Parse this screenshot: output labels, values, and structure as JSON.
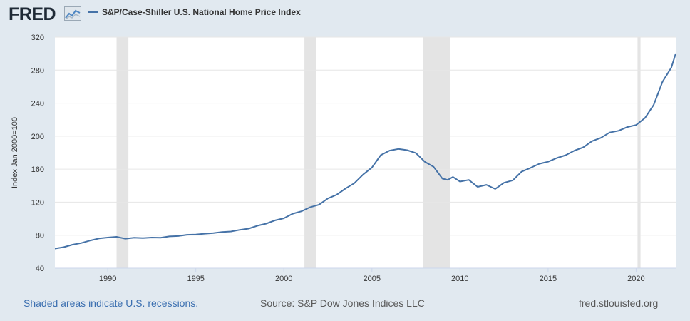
{
  "header": {
    "logo_text": "FRED",
    "legend_label": "S&P/Case-Shiller U.S. National Home Price Index"
  },
  "footer": {
    "note": "Shaded areas indicate U.S. recessions.",
    "source": "Source: S&P Dow Jones Indices LLC",
    "site": "fred.stlouisfed.org"
  },
  "colors": {
    "background": "#e1e9f0",
    "plot_background": "#ffffff",
    "series": "#4572a7",
    "recession": "#e4e4e4",
    "grid": "#e6e6e6",
    "logo": "#1f2a36"
  },
  "chart_data": {
    "type": "line",
    "title": "S&P/Case-Shiller U.S. National Home Price Index",
    "xlabel": "",
    "ylabel": "Index Jan 2000=100",
    "xlim": [
      1987.0,
      2022.25
    ],
    "ylim": [
      40,
      320
    ],
    "x_ticks": [
      1990,
      1995,
      2000,
      2005,
      2010,
      2015,
      2020
    ],
    "y_ticks": [
      40,
      80,
      120,
      160,
      200,
      240,
      280,
      320
    ],
    "grid": true,
    "recessions": [
      [
        1990.5,
        1991.17
      ],
      [
        2001.17,
        2001.83
      ],
      [
        2007.92,
        2009.42
      ],
      [
        2020.08,
        2020.25
      ]
    ],
    "series": [
      {
        "name": "S&P/Case-Shiller U.S. National Home Price Index",
        "x": [
          1987.0,
          1987.5,
          1988.0,
          1988.5,
          1989.0,
          1989.5,
          1990.0,
          1990.5,
          1991.0,
          1991.5,
          1992.0,
          1992.5,
          1993.0,
          1993.5,
          1994.0,
          1994.5,
          1995.0,
          1995.5,
          1996.0,
          1996.5,
          1997.0,
          1997.5,
          1998.0,
          1998.5,
          1999.0,
          1999.5,
          2000.0,
          2000.5,
          2001.0,
          2001.5,
          2002.0,
          2002.5,
          2003.0,
          2003.5,
          2004.0,
          2004.5,
          2005.0,
          2005.5,
          2006.0,
          2006.5,
          2007.0,
          2007.5,
          2008.0,
          2008.5,
          2009.0,
          2009.3,
          2009.6,
          2010.0,
          2010.5,
          2011.0,
          2011.5,
          2012.0,
          2012.5,
          2013.0,
          2013.5,
          2014.0,
          2014.5,
          2015.0,
          2015.5,
          2016.0,
          2016.5,
          2017.0,
          2017.5,
          2018.0,
          2018.5,
          2019.0,
          2019.5,
          2020.0,
          2020.5,
          2021.0,
          2021.5,
          2022.0,
          2022.25
        ],
        "values": [
          63.8,
          65.5,
          68.5,
          70.5,
          73.5,
          76.0,
          77.2,
          78.0,
          75.8,
          77.0,
          76.5,
          77.2,
          77.0,
          78.5,
          79.0,
          80.5,
          80.8,
          81.8,
          82.5,
          83.8,
          84.5,
          86.5,
          88.0,
          91.5,
          94.0,
          98.0,
          100.5,
          106.0,
          109.0,
          114.0,
          117.0,
          124.5,
          129.0,
          136.5,
          143.0,
          153.5,
          162.0,
          177.0,
          182.5,
          184.5,
          183.0,
          179.5,
          169.0,
          163.0,
          148.5,
          147.0,
          150.5,
          145.0,
          147.0,
          138.5,
          141.0,
          136.0,
          143.5,
          146.5,
          157.0,
          161.5,
          166.5,
          169.0,
          173.5,
          177.0,
          182.5,
          186.5,
          194.0,
          198.0,
          204.5,
          206.5,
          211.0,
          213.5,
          222.0,
          238.0,
          266.0,
          283.0,
          300.0
        ]
      }
    ]
  }
}
